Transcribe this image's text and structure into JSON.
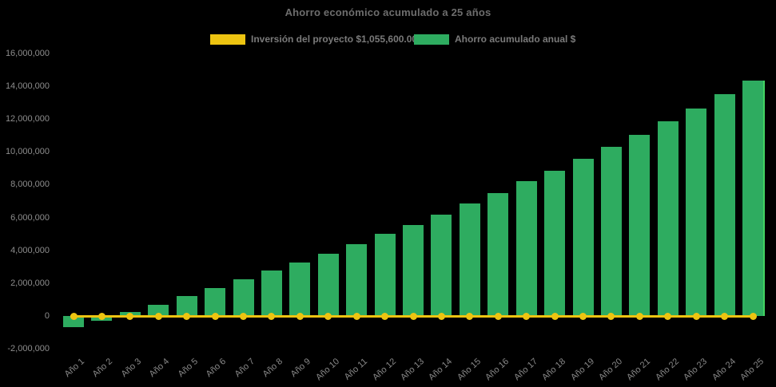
{
  "title": "Ahorro económico acumulado a 25 años",
  "legend": [
    {
      "label": "Inversión del proyecto $1,055,600.00",
      "color": "#edc411"
    },
    {
      "label": "Ahorro acumulado anual $",
      "color": "#2eac60"
    }
  ],
  "colors": {
    "background": "#000000",
    "bar_green": "#2eac60",
    "bar_highlight_edge": "#43d362",
    "line_yellow": "#edc411",
    "title_text": "#6d6d6d",
    "legend_text": "#7a7a7a",
    "axis_text": "#8d8d8d"
  },
  "chart_data": {
    "type": "bar",
    "title": "Ahorro económico acumulado a 25 años",
    "categories": [
      "Año 1",
      "Año 2",
      "Año 3",
      "Año 4",
      "Año 5",
      "Año 6",
      "Año 7",
      "Año 8",
      "Año 9",
      "Año 10",
      "Año 11",
      "Año 12",
      "Año 13",
      "Año 14",
      "Año 15",
      "Año 16",
      "Año 17",
      "Año 18",
      "Año 19",
      "Año 20",
      "Año 21",
      "Año 22",
      "Año 23",
      "Año 24",
      "Año 25"
    ],
    "series": [
      {
        "name": "Ahorro acumulado anual $",
        "type": "bar",
        "color": "#2eac60",
        "values": [
          -700000,
          -300000,
          250000,
          700000,
          1200000,
          1700000,
          2250000,
          2750000,
          3250000,
          3800000,
          4350000,
          5000000,
          5550000,
          6150000,
          6850000,
          7500000,
          8200000,
          8850000,
          9600000,
          10300000,
          11050000,
          11850000,
          12650000,
          13500000,
          14350000
        ]
      },
      {
        "name": "Inversión del proyecto $1,055,600.00",
        "type": "line",
        "color": "#edc411",
        "values": [
          0,
          0,
          0,
          0,
          0,
          0,
          0,
          0,
          0,
          0,
          0,
          0,
          0,
          0,
          0,
          0,
          0,
          0,
          0,
          0,
          0,
          0,
          0,
          0,
          0
        ]
      }
    ],
    "ylim": [
      -2000000,
      16000000
    ],
    "ytick_step": 2000000,
    "grid": false,
    "legend_position": "top",
    "xlabel": "",
    "ylabel": ""
  }
}
